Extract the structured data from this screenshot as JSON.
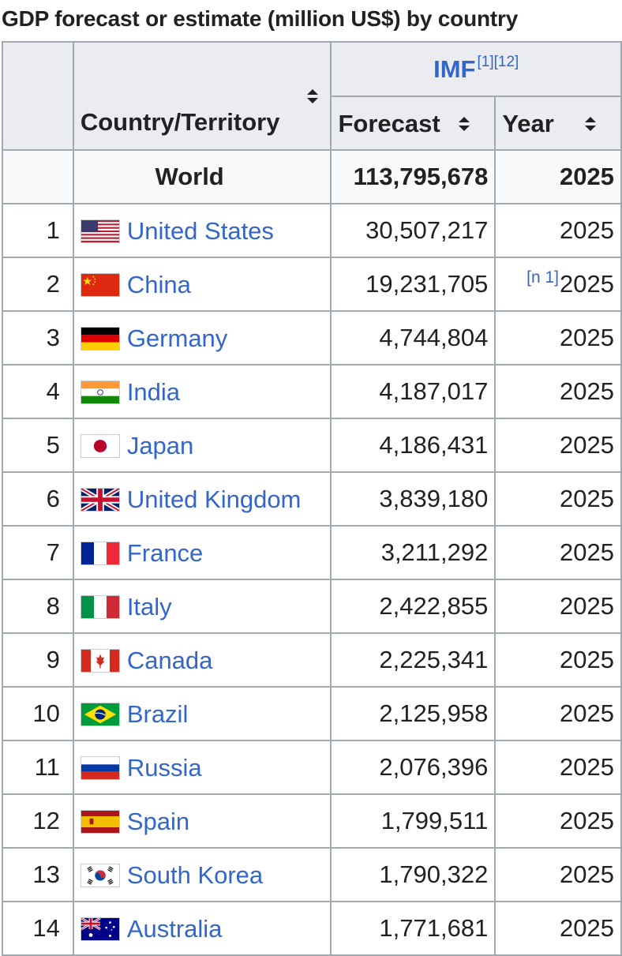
{
  "caption": "GDP forecast or estimate (million US$) by country",
  "headers": {
    "imf": "IMF",
    "imf_refs": "[1][12]",
    "country": "Country/Territory",
    "forecast": "Forecast",
    "year": "Year"
  },
  "world": {
    "label": "World",
    "forecast": "113,795,678",
    "year": "2025"
  },
  "rows": [
    {
      "rank": "1",
      "country": "United States",
      "flag": "us-flag-icon",
      "forecast": "30,507,217",
      "year": "2025",
      "note": ""
    },
    {
      "rank": "2",
      "country": "China",
      "flag": "china-flag-icon",
      "forecast": "19,231,705",
      "year": "2025",
      "note": "[n 1]"
    },
    {
      "rank": "3",
      "country": "Germany",
      "flag": "germany-flag-icon",
      "forecast": "4,744,804",
      "year": "2025",
      "note": ""
    },
    {
      "rank": "4",
      "country": "India",
      "flag": "india-flag-icon",
      "forecast": "4,187,017",
      "year": "2025",
      "note": ""
    },
    {
      "rank": "5",
      "country": "Japan",
      "flag": "japan-flag-icon",
      "forecast": "4,186,431",
      "year": "2025",
      "note": ""
    },
    {
      "rank": "6",
      "country": "United Kingdom",
      "flag": "uk-flag-icon",
      "forecast": "3,839,180",
      "year": "2025",
      "note": ""
    },
    {
      "rank": "7",
      "country": "France",
      "flag": "france-flag-icon",
      "forecast": "3,211,292",
      "year": "2025",
      "note": ""
    },
    {
      "rank": "8",
      "country": "Italy",
      "flag": "italy-flag-icon",
      "forecast": "2,422,855",
      "year": "2025",
      "note": ""
    },
    {
      "rank": "9",
      "country": "Canada",
      "flag": "canada-flag-icon",
      "forecast": "2,225,341",
      "year": "2025",
      "note": ""
    },
    {
      "rank": "10",
      "country": "Brazil",
      "flag": "brazil-flag-icon",
      "forecast": "2,125,958",
      "year": "2025",
      "note": ""
    },
    {
      "rank": "11",
      "country": "Russia",
      "flag": "russia-flag-icon",
      "forecast": "2,076,396",
      "year": "2025",
      "note": ""
    },
    {
      "rank": "12",
      "country": "Spain",
      "flag": "spain-flag-icon",
      "forecast": "1,799,511",
      "year": "2025",
      "note": ""
    },
    {
      "rank": "13",
      "country": "South Korea",
      "flag": "south-korea-flag-icon",
      "forecast": "1,790,322",
      "year": "2025",
      "note": ""
    },
    {
      "rank": "14",
      "country": "Australia",
      "flag": "australia-flag-icon",
      "forecast": "1,771,681",
      "year": "2025",
      "note": ""
    }
  ],
  "colors": {
    "link": "#3366cc",
    "border": "#a2a9b1",
    "header_bg": "#eaecf0",
    "text": "#202122"
  }
}
